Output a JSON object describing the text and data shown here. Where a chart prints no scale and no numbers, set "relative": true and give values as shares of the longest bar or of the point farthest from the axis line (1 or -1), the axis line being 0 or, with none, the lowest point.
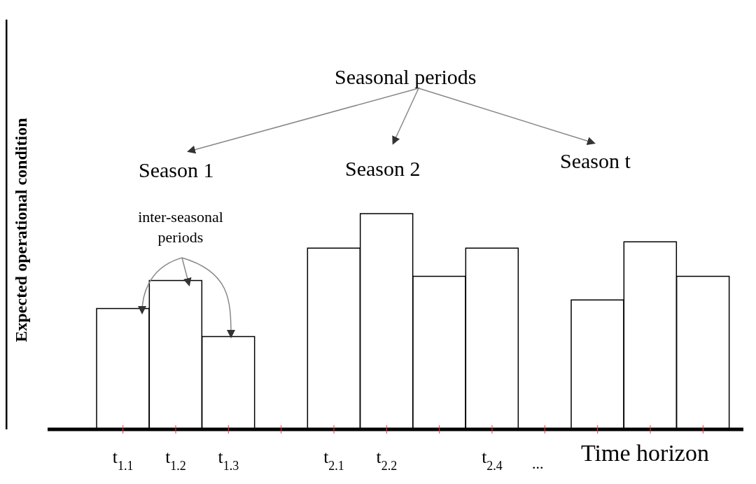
{
  "chart_data": {
    "type": "bar",
    "relative": true,
    "xlabel": "Time horizon",
    "ylabel": "Expected operational condition",
    "categories": [
      "t$_{1.1}$",
      "t$_{1.2}$",
      "t$_{1.3}$",
      null,
      "t$_{2.1}$",
      "t$_{2.2}$",
      null,
      "t$_{2.4}$",
      null,
      null,
      null,
      null
    ],
    "values": [
      0.56,
      0.69,
      0.43,
      null,
      0.84,
      1,
      0.71,
      0.84,
      null,
      0.6,
      0.87,
      0.71
    ],
    "color": "#ffffff",
    "annotations": [
      "Seasonal periods",
      "Season 1",
      "Season 2",
      "Season t",
      "inter-seasonal periods",
      "..."
    ]
  }
}
